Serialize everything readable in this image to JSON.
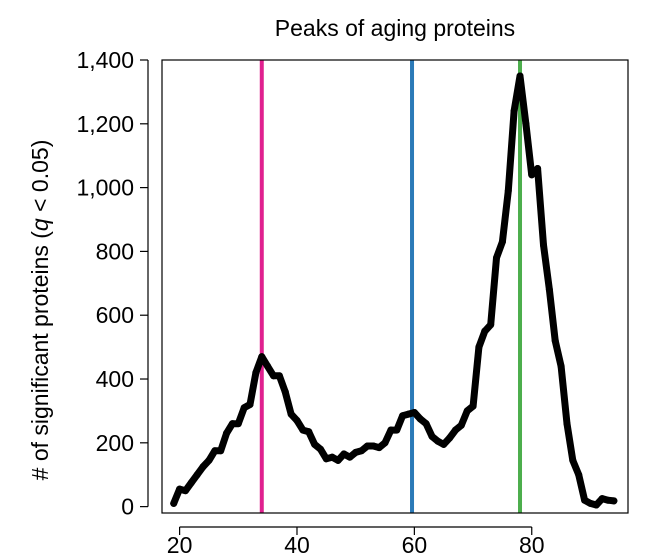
{
  "chart_data": {
    "type": "line",
    "title": "Peaks of aging proteins",
    "ylabel_prefix": "# of significant proteins (",
    "ylabel_italic": "q",
    "ylabel_suffix": " < 0.05)",
    "xlabel": "",
    "xlim": [
      17,
      96.4
    ],
    "ylim": [
      -20,
      1400
    ],
    "xticks": [
      20,
      40,
      60,
      80
    ],
    "yticks": [
      0,
      200,
      400,
      600,
      800,
      1000,
      1200,
      1400
    ],
    "ytick_labels": [
      "0",
      "200",
      "400",
      "600",
      "800",
      "1,000",
      "1,200",
      "1,400"
    ],
    "grid": false,
    "series": [
      {
        "color": "#000000",
        "x": [
          19,
          20,
          21,
          22,
          23,
          24,
          25,
          26,
          27,
          28,
          29,
          30,
          31,
          32,
          33,
          34,
          35,
          36,
          37,
          38,
          39,
          40,
          41,
          42,
          43,
          44,
          45,
          46,
          47,
          48,
          49,
          50,
          51,
          52,
          53,
          54,
          55,
          56,
          57,
          58,
          59,
          60,
          61,
          62,
          63,
          64,
          65,
          66,
          67,
          68,
          69,
          70,
          71,
          72,
          73,
          74,
          75,
          76,
          77,
          78,
          79,
          80,
          81,
          82,
          83,
          84,
          85,
          86,
          87,
          88,
          89,
          90,
          91,
          92,
          93,
          94
        ],
        "values": [
          10,
          55,
          50,
          75,
          100,
          125,
          145,
          175,
          175,
          230,
          260,
          260,
          310,
          320,
          420,
          470,
          440,
          410,
          410,
          360,
          290,
          270,
          240,
          235,
          195,
          180,
          150,
          155,
          145,
          165,
          155,
          170,
          175,
          190,
          190,
          185,
          200,
          240,
          240,
          285,
          290,
          295,
          275,
          260,
          220,
          205,
          195,
          215,
          240,
          255,
          300,
          315,
          500,
          550,
          570,
          780,
          830,
          990,
          1240,
          1350,
          1200,
          1040,
          1060,
          820,
          680,
          520,
          440,
          260,
          145,
          100,
          20,
          10,
          5,
          25,
          20,
          18
        ]
      }
    ],
    "vlines": [
      {
        "x": 34,
        "color": "#e0208f"
      },
      {
        "x": 59.6,
        "color": "#2b7ab8"
      },
      {
        "x": 78,
        "color": "#4cae4c"
      }
    ]
  }
}
